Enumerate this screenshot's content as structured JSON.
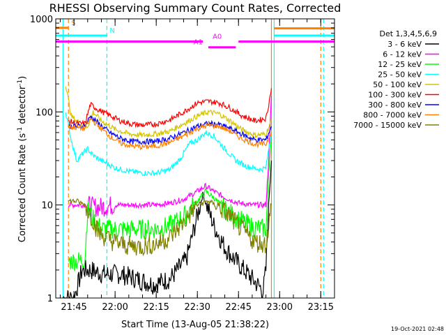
{
  "chart_data": {
    "type": "line",
    "title": "RHESSI Observing Summary Count Rates, Corrected",
    "xlabel": "Start Time (13-Aug-05 21:38:22)",
    "ylabel": "Corrected Count Rate (s⁻¹ detector⁻¹)",
    "ylabel_parts": {
      "main": "Corrected Count Rate (s",
      "sup1": "-1",
      "mid": " detector",
      "sup2": "-1",
      "end": ")"
    },
    "yscale": "log",
    "xlim": [
      "21:38:22",
      "23:20:00"
    ],
    "ylim": [
      1,
      1000
    ],
    "x_ticks": [
      "21:45",
      "22:00",
      "22:15",
      "22:30",
      "22:45",
      "23:00",
      "23:15"
    ],
    "y_ticks": [
      "1",
      "10",
      "100",
      "1000"
    ],
    "legend_header": "Det 1,3,4,5,6,9",
    "legend_position": "right",
    "timestamp": "19-Oct-2021 02:48",
    "series": [
      {
        "name": "3 - 6 keV",
        "color": "#000000",
        "points": [
          [
            "21:41",
            1
          ],
          [
            "21:42",
            1
          ],
          [
            "21:45",
            1
          ],
          [
            "21:48",
            2
          ],
          [
            "21:51",
            2
          ],
          [
            "21:56",
            1.8
          ],
          [
            "22:02",
            1.8
          ],
          [
            "22:08",
            1.6
          ],
          [
            "22:14",
            1.4
          ],
          [
            "22:20",
            1.6
          ],
          [
            "22:26",
            2.6
          ],
          [
            "22:32",
            13
          ],
          [
            "22:36",
            6
          ],
          [
            "22:40",
            3.5
          ],
          [
            "22:44",
            2.5
          ],
          [
            "22:50",
            1.6
          ],
          [
            "22:54",
            1.2
          ],
          [
            "22:55",
            2
          ],
          [
            "22:56",
            10
          ],
          [
            "22:57",
            30
          ]
        ]
      },
      {
        "name": "6 - 12 keV",
        "color": "#ff00ff",
        "points": [
          [
            "21:43",
            10
          ],
          [
            "21:46",
            10
          ],
          [
            "21:50",
            10
          ],
          [
            "21:52",
            9.5
          ],
          [
            "21:55",
            9.5
          ],
          [
            "22:00",
            10
          ],
          [
            "22:05",
            10
          ],
          [
            "22:10",
            10
          ],
          [
            "22:15",
            10
          ],
          [
            "22:20",
            10.5
          ],
          [
            "22:25",
            11.5
          ],
          [
            "22:30",
            14
          ],
          [
            "22:33",
            16
          ],
          [
            "22:36",
            14
          ],
          [
            "22:40",
            12
          ],
          [
            "22:45",
            10.5
          ],
          [
            "22:50",
            10
          ],
          [
            "22:55",
            10
          ],
          [
            "22:56",
            30
          ],
          [
            "22:57",
            150
          ]
        ]
      },
      {
        "name": "12 - 25 keV",
        "color": "#00ff00",
        "points": [
          [
            "21:43",
            2.5
          ],
          [
            "21:46",
            2.5
          ],
          [
            "21:49",
            2.6
          ],
          [
            "21:50",
            9
          ],
          [
            "21:52",
            7
          ],
          [
            "21:55",
            5.5
          ],
          [
            "22:00",
            5.5
          ],
          [
            "22:05",
            5.5
          ],
          [
            "22:10",
            5.5
          ],
          [
            "22:15",
            5.5
          ],
          [
            "22:20",
            6
          ],
          [
            "22:25",
            7.5
          ],
          [
            "22:30",
            11
          ],
          [
            "22:33",
            14
          ],
          [
            "22:36",
            12
          ],
          [
            "22:40",
            9
          ],
          [
            "22:45",
            7
          ],
          [
            "22:50",
            5.8
          ],
          [
            "22:55",
            5.5
          ],
          [
            "22:56",
            20
          ],
          [
            "22:57",
            60
          ]
        ]
      },
      {
        "name": "25 - 50 keV",
        "color": "#00ffff",
        "points": [
          [
            "21:42",
            100
          ],
          [
            "21:44",
            50
          ],
          [
            "21:46",
            30
          ],
          [
            "21:48",
            35
          ],
          [
            "21:50",
            40
          ],
          [
            "21:52",
            34
          ],
          [
            "21:55",
            30
          ],
          [
            "22:00",
            25
          ],
          [
            "22:05",
            23
          ],
          [
            "22:10",
            22
          ],
          [
            "22:15",
            22
          ],
          [
            "22:20",
            24
          ],
          [
            "22:24",
            32
          ],
          [
            "22:27",
            45
          ],
          [
            "22:30",
            50
          ],
          [
            "22:33",
            60
          ],
          [
            "22:36",
            55
          ],
          [
            "22:40",
            40
          ],
          [
            "22:44",
            30
          ],
          [
            "22:48",
            26
          ],
          [
            "22:53",
            24
          ],
          [
            "22:55",
            25
          ],
          [
            "22:56",
            40
          ],
          [
            "22:57",
            60
          ]
        ]
      },
      {
        "name": "50 - 100 keV",
        "color": "#d4c400",
        "points": [
          [
            "21:42",
            200
          ],
          [
            "21:44",
            90
          ],
          [
            "21:47",
            75
          ],
          [
            "21:50",
            70
          ],
          [
            "21:52",
            100
          ],
          [
            "21:55",
            80
          ],
          [
            "22:00",
            65
          ],
          [
            "22:05",
            58
          ],
          [
            "22:10",
            56
          ],
          [
            "22:15",
            58
          ],
          [
            "22:20",
            62
          ],
          [
            "22:25",
            75
          ],
          [
            "22:30",
            90
          ],
          [
            "22:34",
            100
          ],
          [
            "22:38",
            95
          ],
          [
            "22:42",
            80
          ],
          [
            "22:46",
            65
          ],
          [
            "22:51",
            56
          ],
          [
            "22:55",
            58
          ],
          [
            "22:57",
            80
          ]
        ]
      },
      {
        "name": "100 - 300 keV",
        "color": "#ff0000",
        "points": [
          [
            "21:43",
            80
          ],
          [
            "21:46",
            75
          ],
          [
            "21:49",
            75
          ],
          [
            "21:51",
            120
          ],
          [
            "21:54",
            105
          ],
          [
            "21:58",
            92
          ],
          [
            "22:02",
            80
          ],
          [
            "22:06",
            74
          ],
          [
            "22:10",
            72
          ],
          [
            "22:15",
            74
          ],
          [
            "22:20",
            82
          ],
          [
            "22:25",
            100
          ],
          [
            "22:30",
            125
          ],
          [
            "22:34",
            130
          ],
          [
            "22:38",
            125
          ],
          [
            "22:42",
            110
          ],
          [
            "22:46",
            92
          ],
          [
            "22:51",
            80
          ],
          [
            "22:55",
            85
          ],
          [
            "22:56",
            120
          ],
          [
            "22:57",
            180
          ]
        ]
      },
      {
        "name": "300 - 800 keV",
        "color": "#0000ff",
        "points": [
          [
            "21:43",
            70
          ],
          [
            "21:46",
            70
          ],
          [
            "21:49",
            70
          ],
          [
            "21:51",
            90
          ],
          [
            "21:54",
            75
          ],
          [
            "21:58",
            60
          ],
          [
            "22:02",
            52
          ],
          [
            "22:06",
            48
          ],
          [
            "22:10",
            48
          ],
          [
            "22:15",
            48
          ],
          [
            "22:20",
            52
          ],
          [
            "22:25",
            60
          ],
          [
            "22:30",
            70
          ],
          [
            "22:34",
            75
          ],
          [
            "22:38",
            73
          ],
          [
            "22:42",
            66
          ],
          [
            "22:46",
            58
          ],
          [
            "22:51",
            50
          ],
          [
            "22:55",
            50
          ],
          [
            "22:57",
            70
          ]
        ]
      },
      {
        "name": "800 - 7000 keV",
        "color": "#ff8000",
        "points": [
          [
            "21:43",
            70
          ],
          [
            "21:46",
            68
          ],
          [
            "21:49",
            66
          ],
          [
            "21:51",
            85
          ],
          [
            "21:54",
            70
          ],
          [
            "21:58",
            55
          ],
          [
            "22:02",
            46
          ],
          [
            "22:06",
            43
          ],
          [
            "22:10",
            42
          ],
          [
            "22:15",
            43
          ],
          [
            "22:20",
            47
          ],
          [
            "22:25",
            55
          ],
          [
            "22:30",
            66
          ],
          [
            "22:34",
            72
          ],
          [
            "22:38",
            70
          ],
          [
            "22:42",
            62
          ],
          [
            "22:46",
            52
          ],
          [
            "22:51",
            45
          ],
          [
            "22:55",
            45
          ],
          [
            "22:57",
            62
          ]
        ]
      },
      {
        "name": "7000 - 15000 keV",
        "color": "#808000",
        "points": [
          [
            "21:43",
            11
          ],
          [
            "21:46",
            11
          ],
          [
            "21:49",
            10
          ],
          [
            "21:51",
            8
          ],
          [
            "21:54",
            5
          ],
          [
            "21:58",
            4.2
          ],
          [
            "22:02",
            3.8
          ],
          [
            "22:06",
            3.6
          ],
          [
            "22:10",
            3.6
          ],
          [
            "22:15",
            3.8
          ],
          [
            "22:20",
            4.5
          ],
          [
            "22:25",
            6.5
          ],
          [
            "22:30",
            10
          ],
          [
            "22:34",
            11
          ],
          [
            "22:38",
            9.5
          ],
          [
            "22:42",
            7.5
          ],
          [
            "22:46",
            5.5
          ],
          [
            "22:51",
            4
          ],
          [
            "22:55",
            3.8
          ],
          [
            "22:57",
            10
          ]
        ]
      }
    ],
    "markers": {
      "vertical_lines": [
        {
          "time": "21:41",
          "color": "#00ffff",
          "style": "solid"
        },
        {
          "time": "21:43",
          "color": "#ff8000",
          "style": "dashed"
        },
        {
          "time": "21:57",
          "color": "#00ffff",
          "style": "dashed"
        },
        {
          "time": "22:57",
          "color": "#ff8000",
          "style": "solid"
        },
        {
          "time": "22:58",
          "color": "#00ffff",
          "style": "solid"
        },
        {
          "time": "23:15",
          "color": "#ff8000",
          "style": "dashed"
        },
        {
          "time": "23:16",
          "color": "#00ffff",
          "style": "dashed"
        }
      ],
      "bars": [
        {
          "label": "S",
          "color": "#ff8000",
          "t0": "21:38:22",
          "t1": "21:43",
          "y": 800
        },
        {
          "label": "N",
          "color": "#00ffff",
          "t0": "21:38:22",
          "t1": "21:57",
          "y": 660
        },
        {
          "label": "A0",
          "color": "#ff00ff",
          "t0": "21:38:22",
          "t1": "22:32",
          "y": 570
        },
        {
          "label": "A1",
          "color": "#ff00ff",
          "t0": "22:34",
          "t1": "22:44",
          "y": 495
        },
        {
          "label": "",
          "color": "#ff00ff",
          "t0": "22:45",
          "t1": "23:20",
          "y": 570
        },
        {
          "label": "",
          "color": "#ff8000",
          "t0": "22:58",
          "t1": "23:20",
          "y": 790
        },
        {
          "label": "",
          "color": "#00ffff",
          "t0": "22:58",
          "t1": "23:20",
          "y": 660
        }
      ]
    }
  }
}
